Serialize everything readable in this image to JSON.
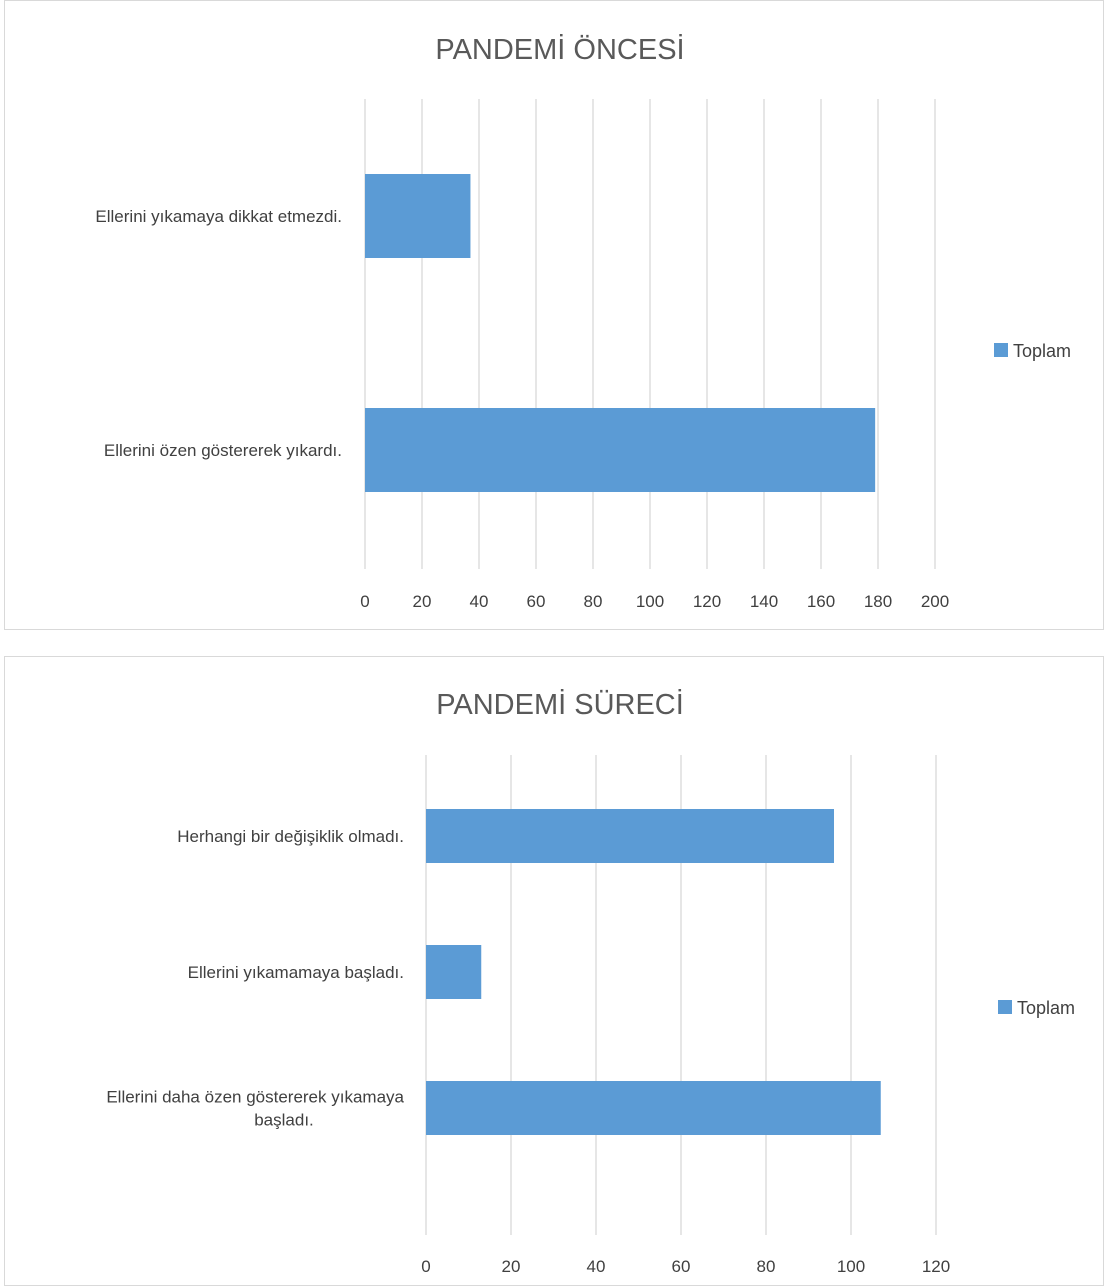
{
  "chart_data": [
    {
      "type": "bar",
      "orientation": "horizontal",
      "title": "PANDEMİ ÖNCESİ",
      "categories": [
        "Ellerini yıkamaya dikkat etmezdi.",
        "Ellerini özen göstererek yıkardı."
      ],
      "series": [
        {
          "name": "Toplam",
          "values": [
            37,
            179
          ],
          "color": "#5b9bd5"
        }
      ],
      "xlim": [
        0,
        200
      ],
      "xticks": [
        "0",
        "20",
        "40",
        "60",
        "80",
        "100",
        "120",
        "140",
        "160",
        "180",
        "200"
      ],
      "grid": true,
      "legend": "right"
    },
    {
      "type": "bar",
      "orientation": "horizontal",
      "title": "PANDEMİ SÜRECİ",
      "categories": [
        "Herhangi bir değişiklik olmadı.",
        "Ellerini yıkamamaya başladı.",
        "Ellerini daha özen göstererek yıkamaya başladı."
      ],
      "category_lines": [
        [
          "Herhangi bir değişiklik olmadı."
        ],
        [
          "Ellerini yıkamamaya başladı."
        ],
        [
          "Ellerini daha özen göstererek yıkamaya",
          "başladı."
        ]
      ],
      "series": [
        {
          "name": "Toplam",
          "values": [
            96,
            13,
            107
          ],
          "color": "#5b9bd5"
        }
      ],
      "xlim": [
        0,
        120
      ],
      "xticks": [
        "0",
        "20",
        "40",
        "60",
        "80",
        "100",
        "120"
      ],
      "grid": true,
      "legend": "right"
    }
  ],
  "colors": {
    "bar": "#5b9bd5",
    "grid": "#d9d9d9",
    "text": "#404040",
    "title": "#595959",
    "border": "#d9d9d9"
  }
}
